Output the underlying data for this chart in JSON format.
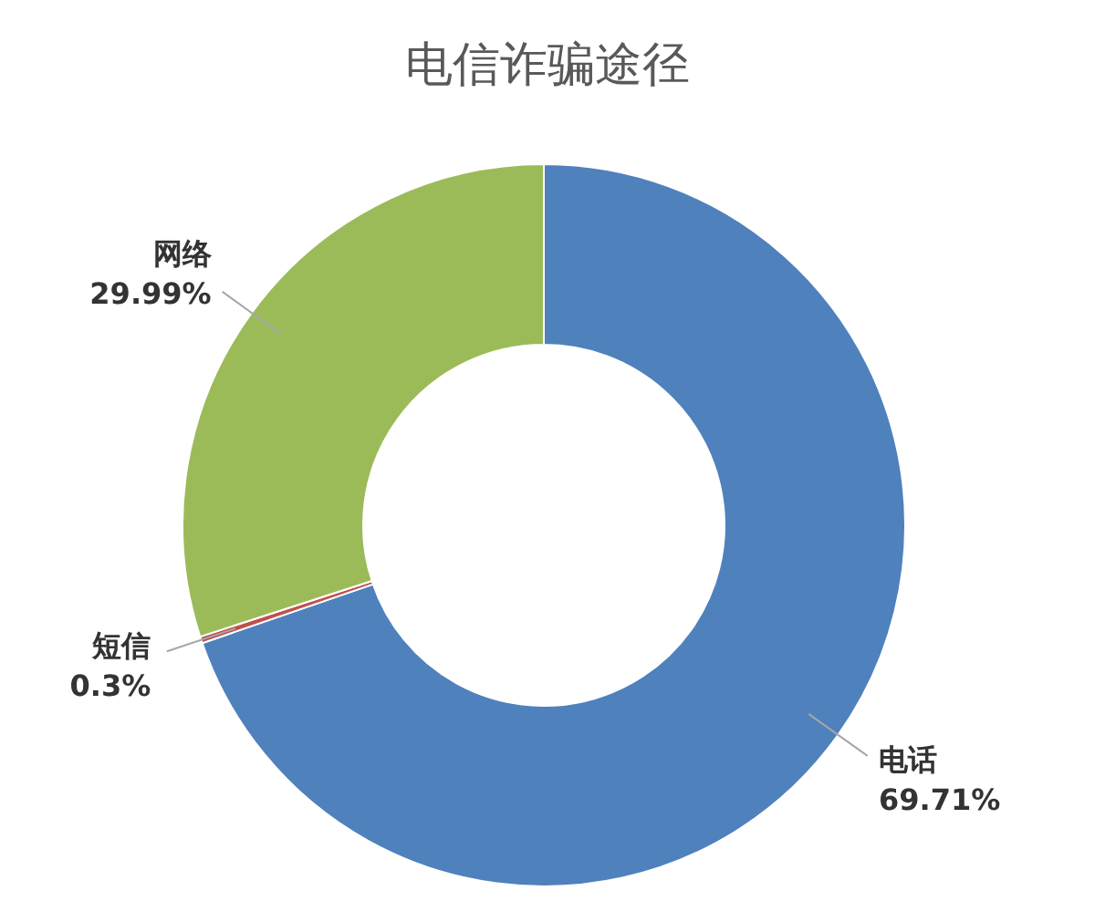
{
  "chart_data": {
    "type": "donut",
    "title": "电信诈骗途径",
    "categories": [
      "电话",
      "短信",
      "网络"
    ],
    "values": [
      69.71,
      0.3,
      29.99
    ],
    "value_labels": [
      "69.71%",
      "0.3%",
      "29.99%"
    ],
    "colors": [
      "#4f81bd",
      "#c0504d",
      "#9bbb59"
    ],
    "legend": false
  }
}
